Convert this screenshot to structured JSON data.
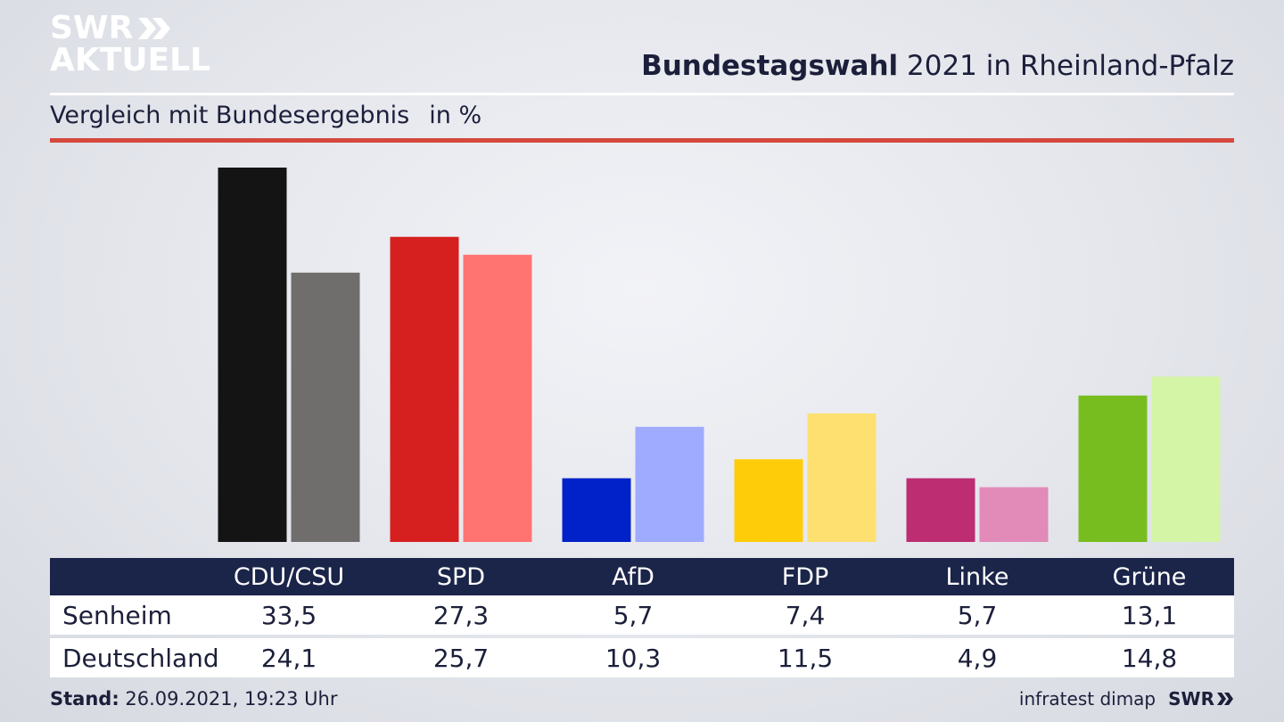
{
  "header": {
    "logo_line1": "SWR",
    "logo_line2": "AKTUELL",
    "title_bold": "Bundestagswahl",
    "title_rest": " 2021 in Rheinland-Pfalz",
    "subtitle": "Vergleich mit Bundesergebnis",
    "unit": "in %"
  },
  "chart_data": {
    "type": "bar",
    "categories": [
      "CDU/CSU",
      "SPD",
      "AfD",
      "FDP",
      "Linke",
      "Grüne"
    ],
    "series": [
      {
        "name": "Senheim",
        "values": [
          33.5,
          27.3,
          5.7,
          7.4,
          5.7,
          13.1
        ],
        "colors": [
          "#141414",
          "#d61f1f",
          "#0022c8",
          "#ffcc0a",
          "#bc2d72",
          "#78bd1f"
        ]
      },
      {
        "name": "Deutschland",
        "values": [
          24.1,
          25.7,
          10.3,
          11.5,
          4.9,
          14.8
        ],
        "colors": [
          "#6f6e6c",
          "#ff7470",
          "#9fabff",
          "#fde070",
          "#e28ab8",
          "#d4f5a6"
        ]
      }
    ],
    "title": "Bundestagswahl 2021 in Rheinland-Pfalz",
    "subtitle": "Vergleich mit Bundesergebnis",
    "ylabel": "in %",
    "ylim": [
      0,
      33.5
    ],
    "grid": false
  },
  "table": {
    "headers": [
      "CDU/CSU",
      "SPD",
      "AfD",
      "FDP",
      "Linke",
      "Grüne"
    ],
    "rows": [
      {
        "label": "Senheim",
        "values": [
          "33,5",
          "27,3",
          "5,7",
          "7,4",
          "5,7",
          "13,1"
        ]
      },
      {
        "label": "Deutschland",
        "values": [
          "24,1",
          "25,7",
          "10,3",
          "11,5",
          "4,9",
          "14,8"
        ]
      }
    ]
  },
  "footer": {
    "stand_label": "Stand:",
    "stand_value": " 26.09.2021, 19:23 Uhr",
    "source": "infratest dimap",
    "brand": "SWR"
  }
}
